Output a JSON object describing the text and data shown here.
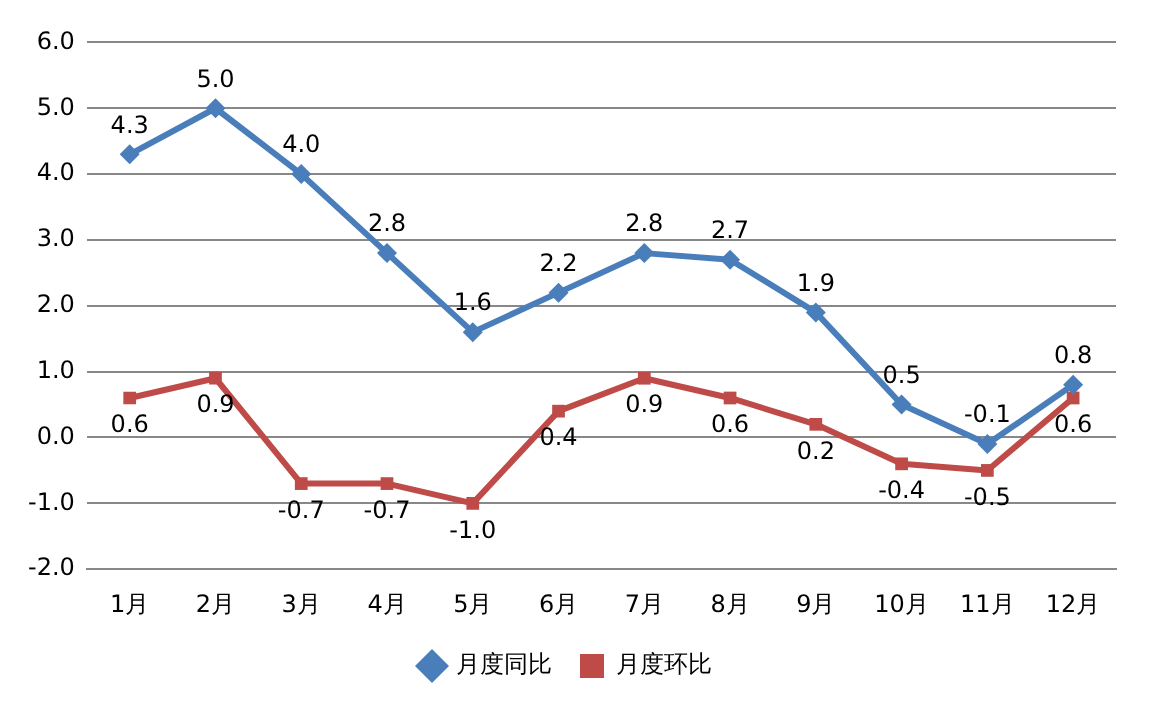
{
  "chart_data": {
    "type": "line",
    "categories": [
      "1月",
      "2月",
      "3月",
      "4月",
      "5月",
      "6月",
      "7月",
      "8月",
      "9月",
      "10月",
      "11月",
      "12月"
    ],
    "series": [
      {
        "name": "月度同比",
        "color": "#4a7ebb",
        "marker": "diamond",
        "values": [
          4.3,
          5.0,
          4.0,
          2.8,
          1.6,
          2.2,
          2.8,
          2.7,
          1.9,
          0.5,
          -0.1,
          0.8
        ],
        "value_labels": [
          "4.3",
          "5.0",
          "4.0",
          "2.8",
          "1.6",
          "2.2",
          "2.8",
          "2.7",
          "1.9",
          "0.5",
          "-0.1",
          "0.8"
        ]
      },
      {
        "name": "月度环比",
        "color": "#be4b48",
        "marker": "square",
        "values": [
          0.6,
          0.9,
          -0.7,
          -0.7,
          -1.0,
          0.4,
          0.9,
          0.6,
          0.2,
          -0.4,
          -0.5,
          0.6
        ],
        "value_labels": [
          "0.6",
          "0.9",
          "-0.7",
          "-0.7",
          "-1.0",
          "0.4",
          "0.9",
          "0.6",
          "0.2",
          "-0.4",
          "-0.5",
          "0.6"
        ]
      }
    ],
    "ylim": [
      -2,
      6
    ],
    "yticks": [
      {
        "value": -2,
        "label": "-2.0"
      },
      {
        "value": -1,
        "label": "-1.0"
      },
      {
        "value": 0,
        "label": "0.0"
      },
      {
        "value": 1,
        "label": "1.0"
      },
      {
        "value": 2,
        "label": "2.0"
      },
      {
        "value": 3,
        "label": "3.0"
      },
      {
        "value": 4,
        "label": "4.0"
      },
      {
        "value": 5,
        "label": "5.0"
      },
      {
        "value": 6,
        "label": "6.0"
      }
    ],
    "grid": "y",
    "legend": "bottom",
    "line_style": "solid"
  }
}
